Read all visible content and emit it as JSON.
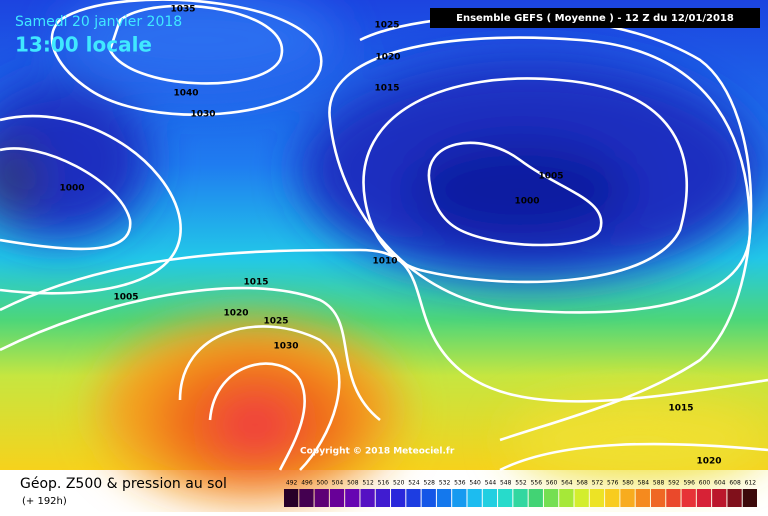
{
  "header": {
    "date": "Samedi 20 janvier 2018",
    "time": "13:00 locale",
    "run": "Ensemble GEFS  ( Moyenne )  -  12 Z du 12/01/2018"
  },
  "map": {
    "isobar_labels": [
      "1035",
      "1025",
      "1020",
      "1015",
      "1040",
      "1030",
      "1000",
      "1005",
      "1000",
      "1010",
      "1005",
      "1015",
      "1020",
      "1025",
      "1030",
      "1015",
      "1020"
    ],
    "copyright": "Copyright © 2018 Meteociel.fr"
  },
  "footer": {
    "title": "Géop. Z500 & pression au sol",
    "lead": "(+ 192h)"
  },
  "legend": {
    "labels": [
      "492",
      "496",
      "500",
      "504",
      "508",
      "512",
      "516",
      "520",
      "524",
      "528",
      "532",
      "536",
      "540",
      "544",
      "548",
      "552",
      "556",
      "560",
      "564",
      "568",
      "572",
      "576",
      "580",
      "584",
      "588",
      "592",
      "596",
      "600",
      "604",
      "608",
      "612"
    ]
  }
}
